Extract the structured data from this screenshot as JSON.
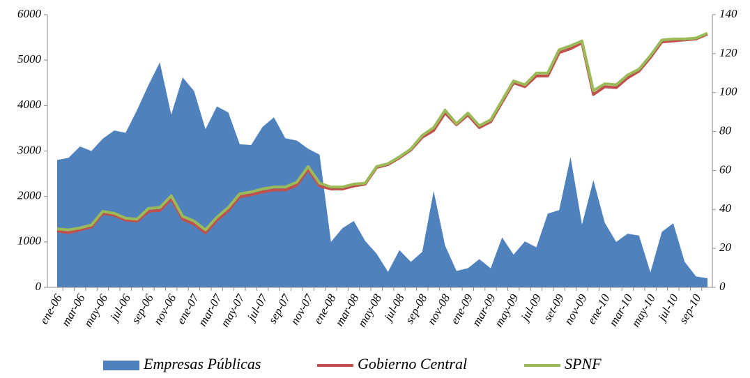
{
  "chart_data": {
    "type": "combo",
    "categories": [
      "ene-06",
      null,
      "mar-06",
      null,
      "may-06",
      null,
      "jul-06",
      null,
      "sep-06",
      null,
      "nov-06",
      null,
      "ene-07",
      null,
      "mar-07",
      null,
      "may-07",
      null,
      "jul-07",
      null,
      "sep-07",
      null,
      "nov-07",
      null,
      "ene-08",
      null,
      "mar-08",
      null,
      "may-08",
      null,
      "jul-08",
      null,
      "sep-08",
      null,
      "nov-08",
      null,
      "ene-09",
      null,
      "mar-09",
      null,
      "may-09",
      null,
      "jul-09",
      null,
      "set-09",
      null,
      "nov-09",
      null,
      "ene-10",
      null,
      "mar-10",
      null,
      "may-10",
      null,
      "jul-10",
      null,
      "sep-10",
      null
    ],
    "series": [
      {
        "name": "Empresas Públicas",
        "type": "area",
        "color": "#4f81bd",
        "values": [
          2800,
          2850,
          3100,
          3000,
          3270,
          3450,
          3400,
          3900,
          4450,
          4950,
          3800,
          4620,
          4320,
          3480,
          3980,
          3850,
          3150,
          3130,
          3530,
          3740,
          3280,
          3230,
          3050,
          2920,
          1000,
          1300,
          1460,
          1020,
          740,
          340,
          820,
          560,
          780,
          2120,
          920,
          360,
          420,
          620,
          420,
          1100,
          720,
          1010,
          880,
          1620,
          1700,
          2870,
          1380,
          2360,
          1420,
          1000,
          1180,
          1140,
          330,
          1220,
          1410,
          560,
          240,
          200
        ]
      },
      {
        "name": "Gobierno Central",
        "type": "line",
        "axis": "y2",
        "color": "#c0504d",
        "values": [
          29,
          28,
          29.5,
          31,
          38,
          37,
          34.5,
          34,
          39,
          39.5,
          45.5,
          35,
          32.5,
          28,
          34.5,
          39.5,
          46.5,
          47.5,
          49,
          50,
          50,
          52.5,
          60.5,
          52,
          50.5,
          50.5,
          52,
          53,
          61.5,
          63,
          66.5,
          70.5,
          77,
          80.5,
          89.5,
          83.5,
          88.5,
          82,
          85,
          95,
          105,
          103,
          108.5,
          108.5,
          120.5,
          122.5,
          125.5,
          99,
          103,
          102.5,
          107.5,
          111,
          118,
          126,
          126.5,
          127,
          127.5,
          130
        ]
      },
      {
        "name": "SPNF",
        "type": "line",
        "axis": "y2",
        "color": "#9bbb59",
        "values": [
          30,
          29.5,
          30.5,
          32,
          39,
          38,
          35.5,
          35,
          40.5,
          41,
          47,
          36.5,
          34,
          29.5,
          36,
          41,
          48,
          49,
          50.5,
          51.5,
          51.5,
          54,
          62,
          53.5,
          51.5,
          51.5,
          53,
          53.5,
          62,
          63.5,
          67,
          71,
          78,
          82,
          91,
          84,
          89.5,
          83,
          86,
          96,
          106,
          104,
          110,
          110,
          122,
          124,
          126.5,
          101,
          104.5,
          104,
          109,
          112,
          119,
          127,
          127.5,
          127.5,
          128,
          130.5
        ]
      }
    ],
    "ylim": [
      0,
      6000
    ],
    "yticks": [
      0,
      1000,
      2000,
      3000,
      4000,
      5000,
      6000
    ],
    "y2lim": [
      0,
      140
    ],
    "y2ticks": [
      0,
      20,
      40,
      60,
      80,
      100,
      120,
      140
    ],
    "legend": "bottom"
  }
}
